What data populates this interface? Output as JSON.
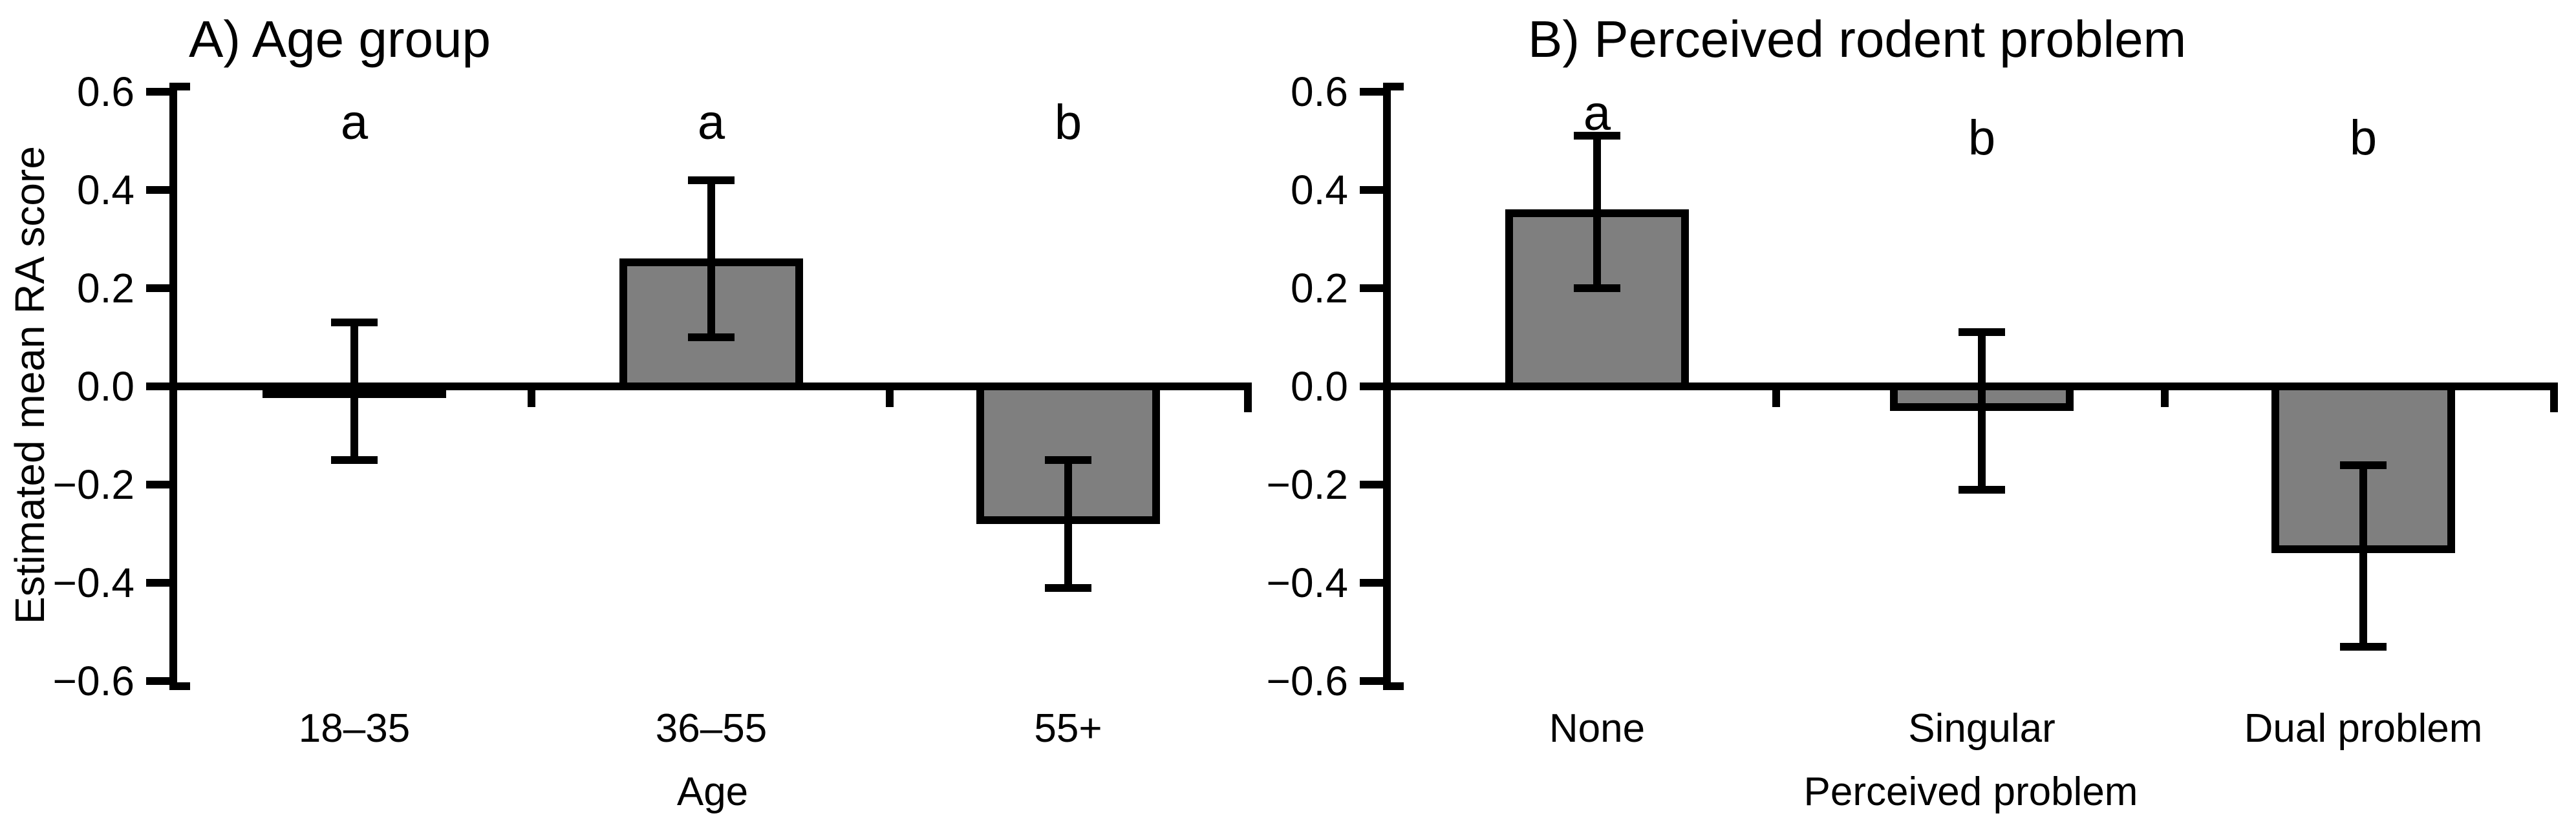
{
  "figure": {
    "background_color": "#ffffff",
    "text_color": "#000000",
    "bar_fill_color": "#7f7f7f",
    "bar_border_color": "#000000",
    "error_bar_color": "#000000"
  },
  "chart_data": [
    {
      "type": "bar",
      "panel": "A",
      "title": "A) Age group",
      "ylabel": "Estimated mean RA score",
      "xlabel": "Age",
      "categories": [
        "18–35",
        "36–55",
        "55+"
      ],
      "values": [
        -0.01,
        0.26,
        -0.28
      ],
      "error_low": [
        -0.15,
        0.1,
        -0.41
      ],
      "error_high": [
        0.13,
        0.42,
        -0.15
      ],
      "sig_letters": [
        "a",
        "a",
        "b"
      ],
      "ylim": [
        -0.6,
        0.6
      ],
      "yticks": [
        0.6,
        0.4,
        0.2,
        0.0,
        -0.2,
        -0.4,
        -0.6
      ],
      "grid": false,
      "legend_position": "none",
      "bar_color": "#7f7f7f"
    },
    {
      "type": "bar",
      "panel": "B",
      "title": "B) Perceived rodent problem",
      "ylabel": "",
      "xlabel": "Perceived problem",
      "categories": [
        "None",
        "Singular",
        "Dual problem"
      ],
      "values": [
        0.36,
        -0.05,
        -0.34
      ],
      "error_low": [
        0.2,
        -0.21,
        -0.53
      ],
      "error_high": [
        0.51,
        0.11,
        -0.16
      ],
      "sig_letters": [
        "a",
        "b",
        "b"
      ],
      "ylim": [
        -0.6,
        0.6
      ],
      "yticks": [
        0.6,
        0.4,
        0.2,
        0.0,
        -0.2,
        -0.4,
        -0.6
      ],
      "grid": false,
      "legend_position": "none",
      "bar_color": "#7f7f7f"
    }
  ]
}
